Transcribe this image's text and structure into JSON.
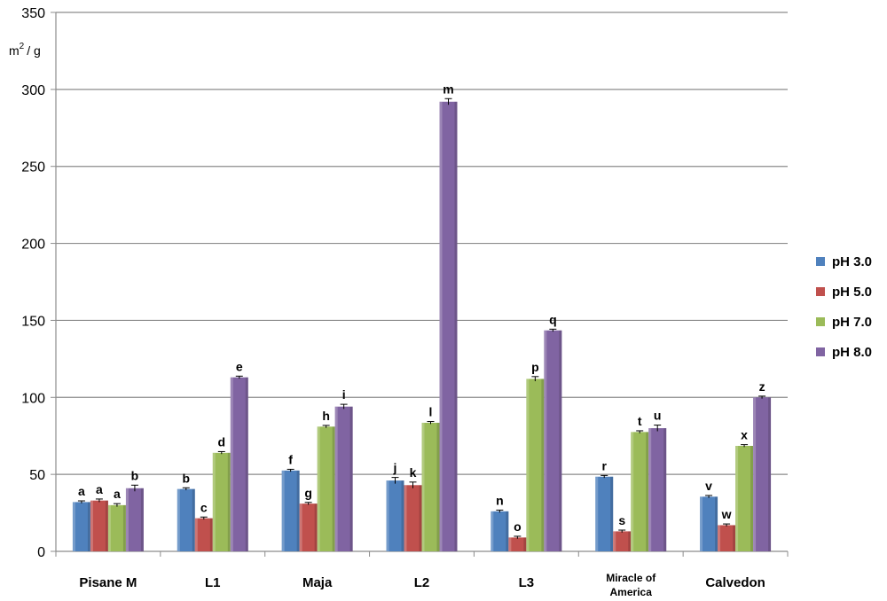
{
  "chart_data": {
    "type": "bar",
    "title": "",
    "xlabel": "",
    "ylabel": "m2 / g",
    "ylabel_main": "m",
    "ylabel_sup": "2",
    "ylabel_rest": "/ g",
    "ylim": [
      0,
      350
    ],
    "yticks": [
      0,
      50,
      100,
      150,
      200,
      250,
      300,
      350
    ],
    "grid": true,
    "legend_position": "right",
    "categories": [
      "Pisane M",
      "L1",
      "Maja",
      "L2",
      "L3",
      "Miracle of America",
      "Calvedon"
    ],
    "series": [
      {
        "name": "pH 3.0",
        "color": "#4F81BD",
        "values": [
          32,
          40.5,
          52.5,
          46,
          26,
          48.5,
          35.5
        ],
        "errors": [
          0.8,
          0.8,
          0.8,
          2,
          0.8,
          0.8,
          0.8
        ],
        "labels": [
          "a",
          "b",
          "f",
          "j",
          "n",
          "r",
          "v"
        ]
      },
      {
        "name": "pH 5.0",
        "color": "#C0504D",
        "values": [
          33,
          21.5,
          31,
          43,
          9,
          13,
          17
        ],
        "errors": [
          1,
          0.8,
          0.8,
          2,
          0.8,
          0.8,
          0.8
        ],
        "labels": [
          "a",
          "c",
          "g",
          "k",
          "o",
          "s",
          "w"
        ]
      },
      {
        "name": "pH 7.0",
        "color": "#9BBB59",
        "values": [
          30,
          64,
          81,
          83.5,
          112,
          77.5,
          68.5
        ],
        "errors": [
          1,
          0.8,
          0.8,
          0.8,
          1.5,
          0.8,
          0.8
        ],
        "labels": [
          "a",
          "d",
          "h",
          "l",
          "p",
          "t",
          "x"
        ]
      },
      {
        "name": "pH 8.0",
        "color": "#8064A2",
        "values": [
          41,
          113,
          94,
          292,
          143.5,
          80,
          100
        ],
        "errors": [
          2,
          0.8,
          1.5,
          2,
          0.8,
          2,
          0.8
        ],
        "labels": [
          "b",
          "e",
          "i",
          "m",
          "q",
          "u",
          "z"
        ]
      }
    ]
  }
}
